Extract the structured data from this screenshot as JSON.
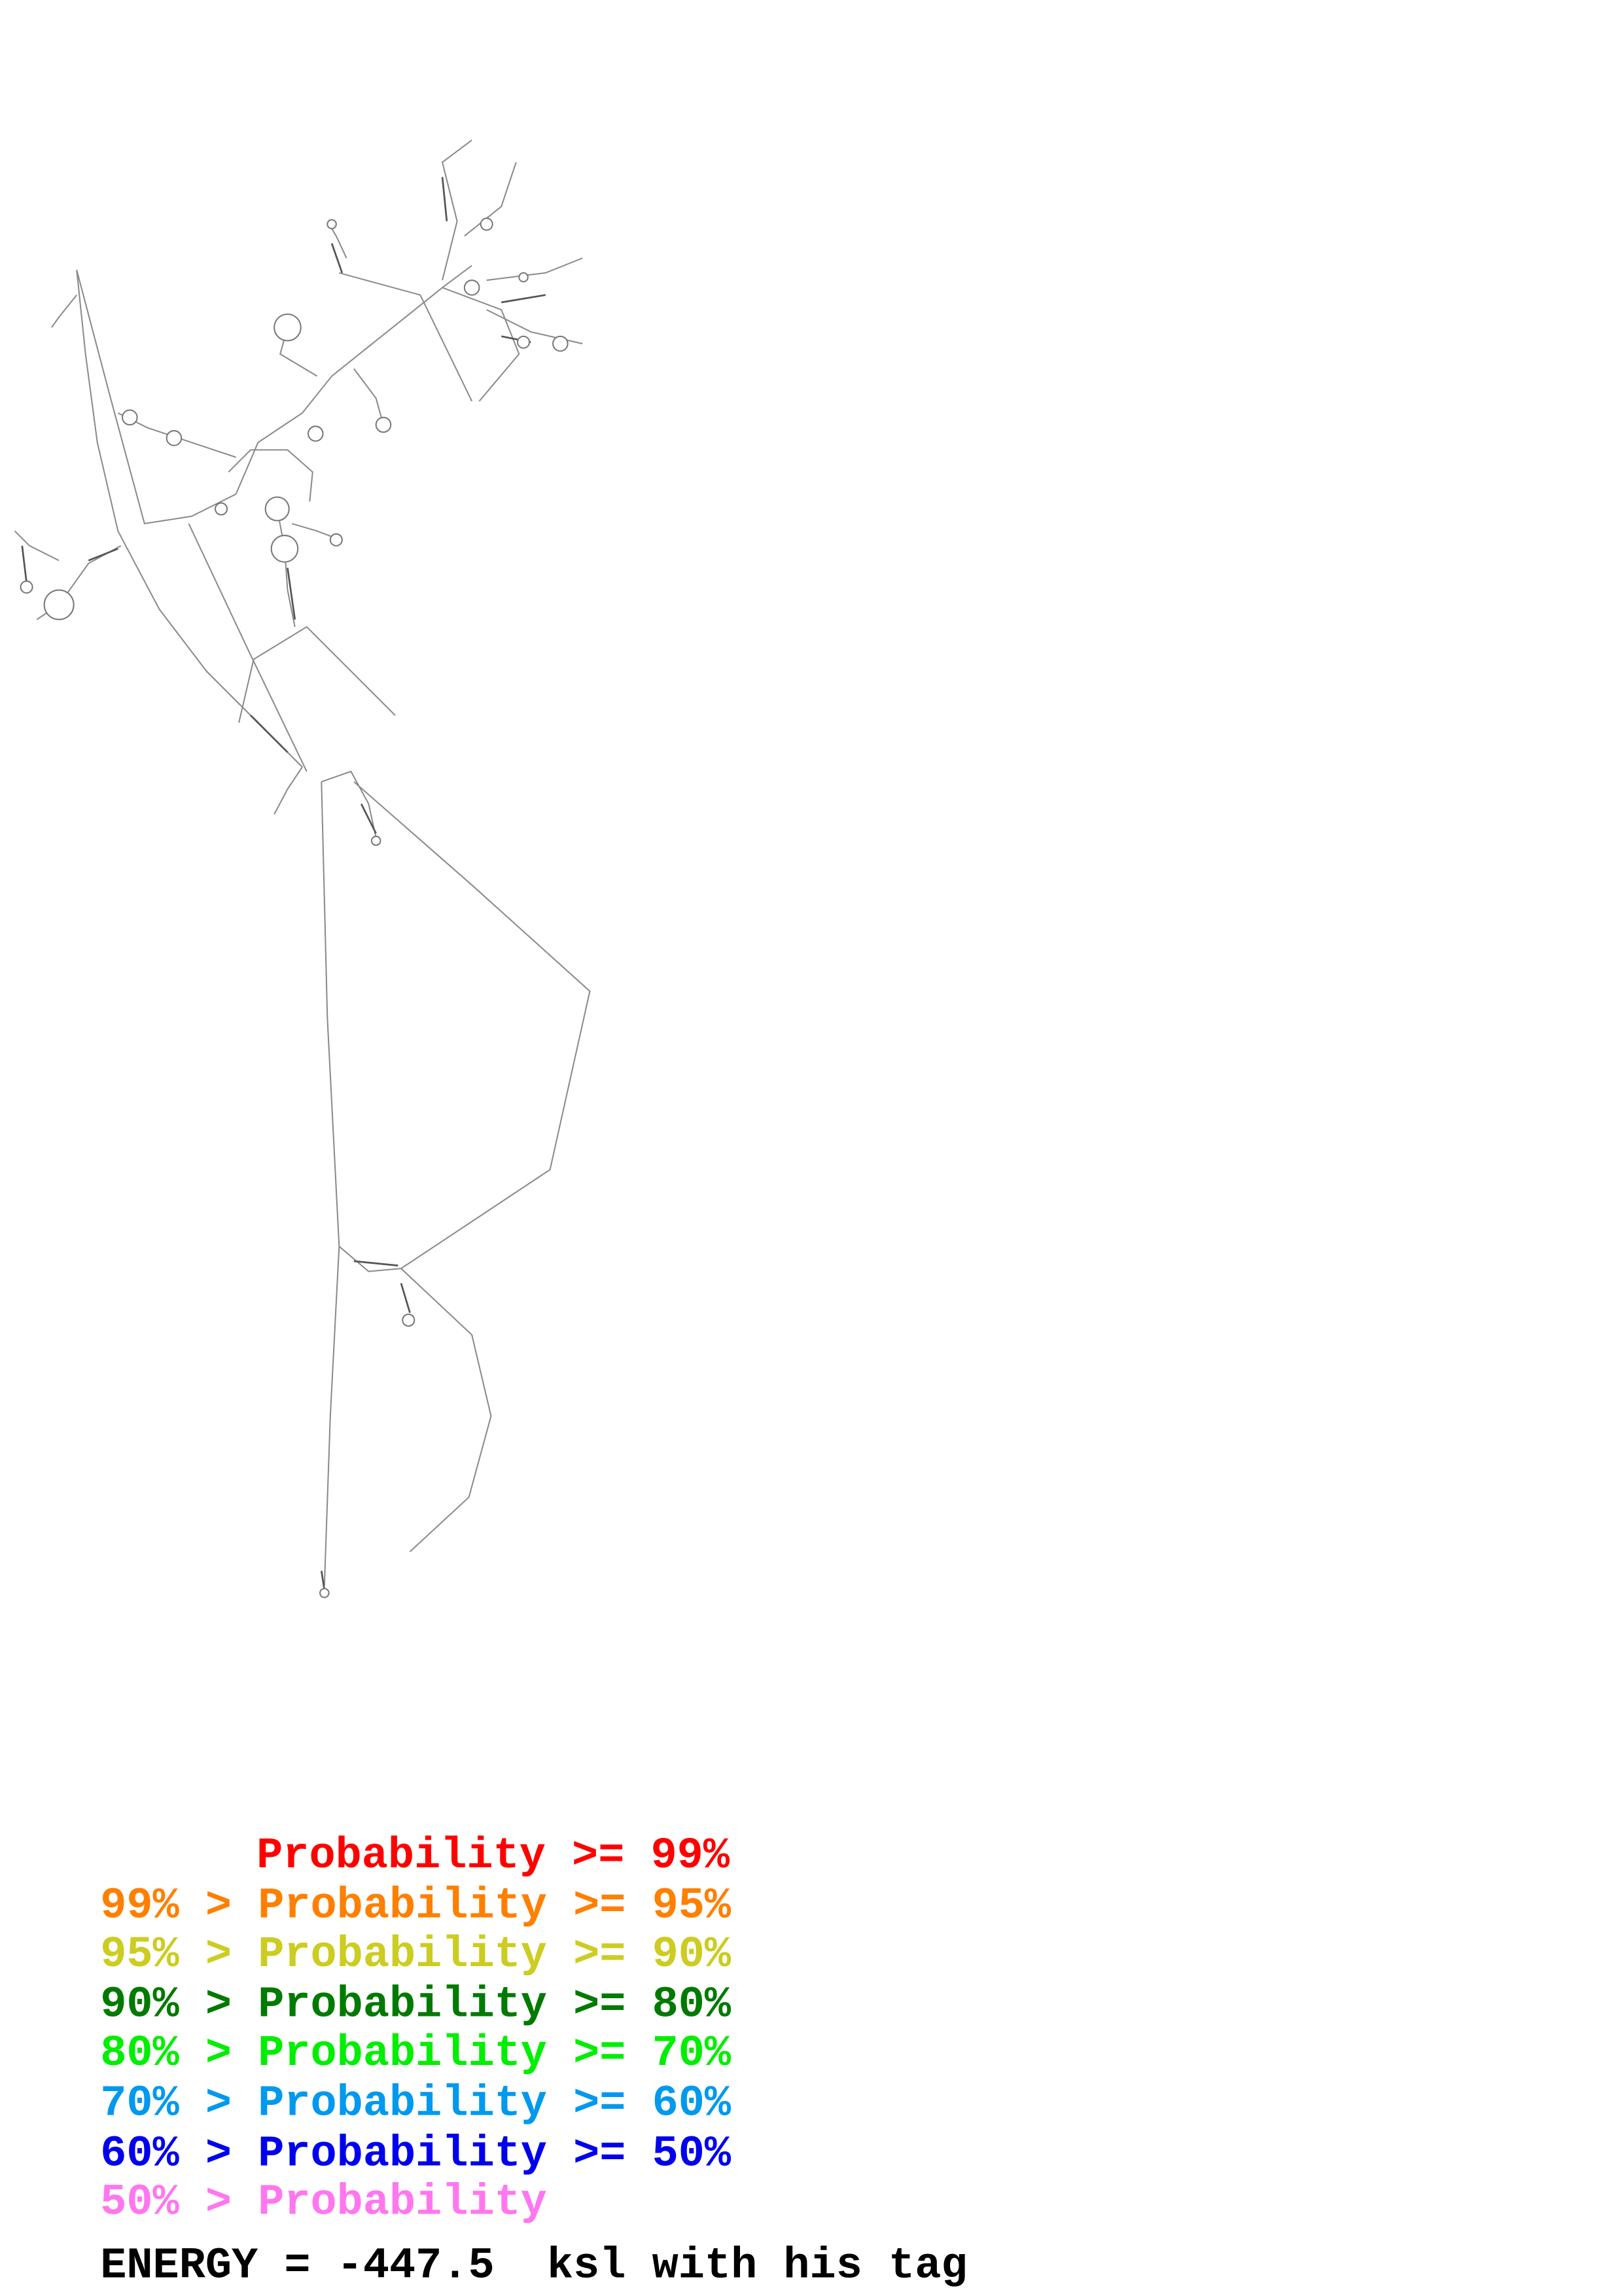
{
  "legend": {
    "lines": [
      "Probability >= 99%",
      "99% > Probability >= 95%",
      "95% > Probability >= 90%",
      "90% > Probability >= 80%",
      "80% > Probability >= 70%",
      "70% > Probability >= 60%",
      "60% > Probability >= 50%",
      "50% > Probability"
    ]
  },
  "footer": {
    "text": "ENERGY = -447.5  ksl with his tag"
  }
}
